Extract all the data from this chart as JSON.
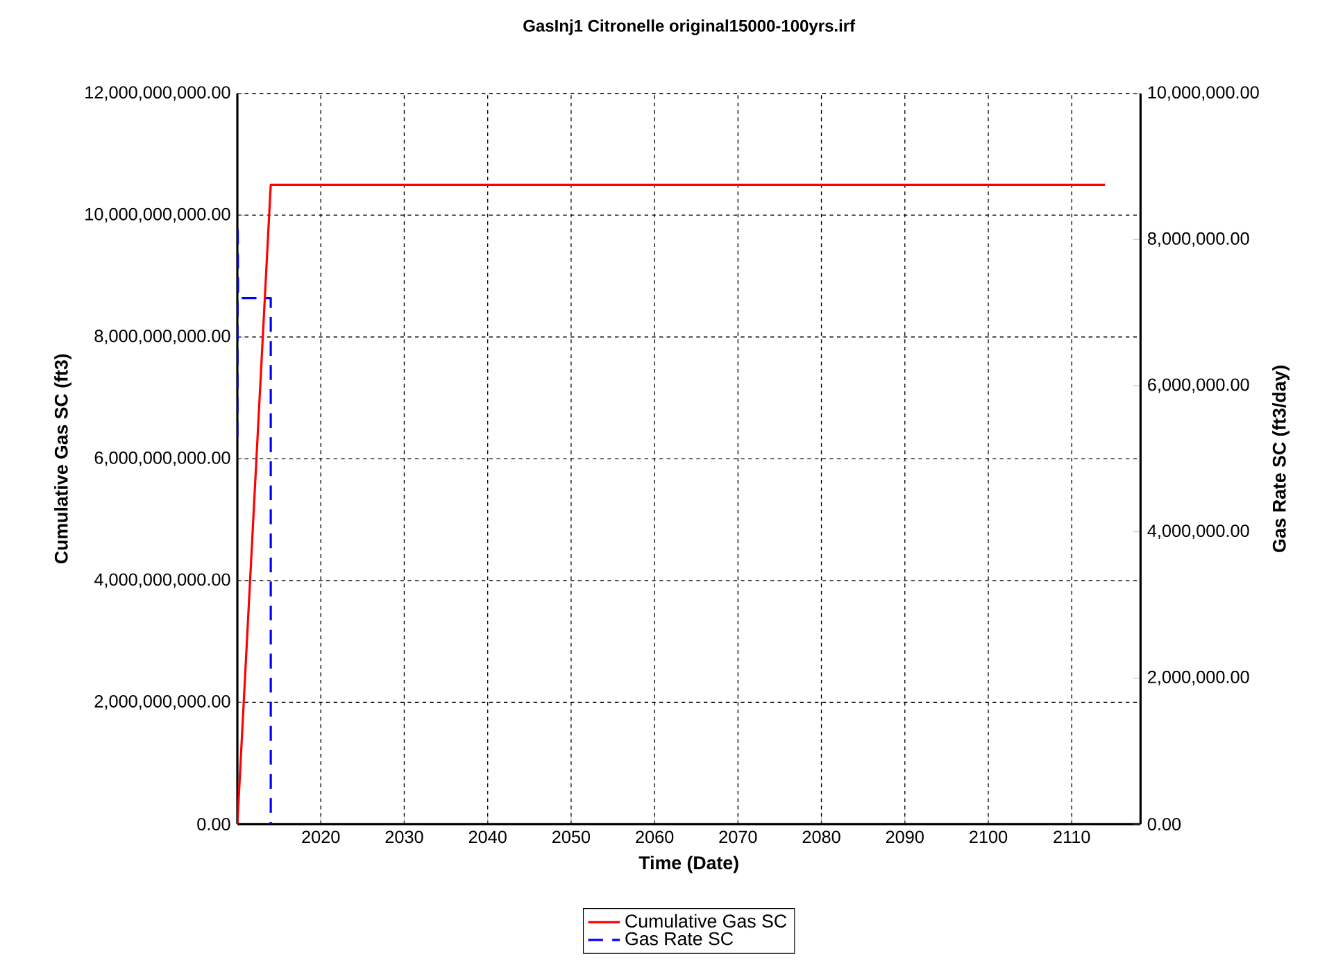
{
  "chart_data": {
    "type": "line",
    "title": "GasInj1 Citronelle original15000-100yrs.irf",
    "xlabel": "Time (Date)",
    "ylabel": "Cumulative Gas SC (ft3)",
    "y2label": "Gas Rate SC (ft3/day)",
    "xlim": [
      "2010-01-01",
      "2118-04-01"
    ],
    "xticks": [
      {
        "value": "2020-01-01",
        "label": "2020"
      },
      {
        "value": "2030-01-01",
        "label": "2030"
      },
      {
        "value": "2040-01-01",
        "label": "2040"
      },
      {
        "value": "2050-01-01",
        "label": "2050"
      },
      {
        "value": "2060-01-01",
        "label": "2060"
      },
      {
        "value": "2070-01-01",
        "label": "2070"
      },
      {
        "value": "2080-01-01",
        "label": "2080"
      },
      {
        "value": "2090-01-01",
        "label": "2090"
      },
      {
        "value": "2100-01-01",
        "label": "2100"
      },
      {
        "value": "2110-01-01",
        "label": "2110"
      }
    ],
    "ylim": [
      0,
      12000000000
    ],
    "yticks": [
      {
        "value": 0,
        "label": "0.00"
      },
      {
        "value": 2000000000,
        "label": "2,000,000,000.00"
      },
      {
        "value": 4000000000,
        "label": "4,000,000,000.00"
      },
      {
        "value": 6000000000,
        "label": "6,000,000,000.00"
      },
      {
        "value": 8000000000,
        "label": "8,000,000,000.00"
      },
      {
        "value": 10000000000,
        "label": "10,000,000,000.00"
      },
      {
        "value": 12000000000,
        "label": "12,000,000,000.00"
      }
    ],
    "y2lim": [
      0,
      10000000
    ],
    "y2ticks": [
      {
        "value": 0,
        "label": "0.00"
      },
      {
        "value": 2000000,
        "label": "2,000,000.00"
      },
      {
        "value": 4000000,
        "label": "4,000,000.00"
      },
      {
        "value": 6000000,
        "label": "6,000,000.00"
      },
      {
        "value": 8000000,
        "label": "8,000,000.00"
      },
      {
        "value": 10000000,
        "label": "10,000,000.00"
      }
    ],
    "grid": true,
    "legend": "bottom",
    "series": [
      {
        "name": "Cumulative Gas SC",
        "color": "#ff0000",
        "line_style": "solid",
        "x": [
          "2010-01-01",
          "2014-01-01",
          "2114-01-01"
        ],
        "values": [
          0,
          10500000000,
          10500000000
        ]
      },
      {
        "name": "Gas Rate SC",
        "color": "#0000ff",
        "line_style": "dashed",
        "axis": "y2",
        "x": [
          "2010-01-01",
          "2010-01-15",
          "2010-02-01",
          "2014-01-01",
          "2014-01-02"
        ],
        "values": [
          5300000,
          8200000,
          7200000,
          7200000,
          0
        ]
      }
    ]
  }
}
